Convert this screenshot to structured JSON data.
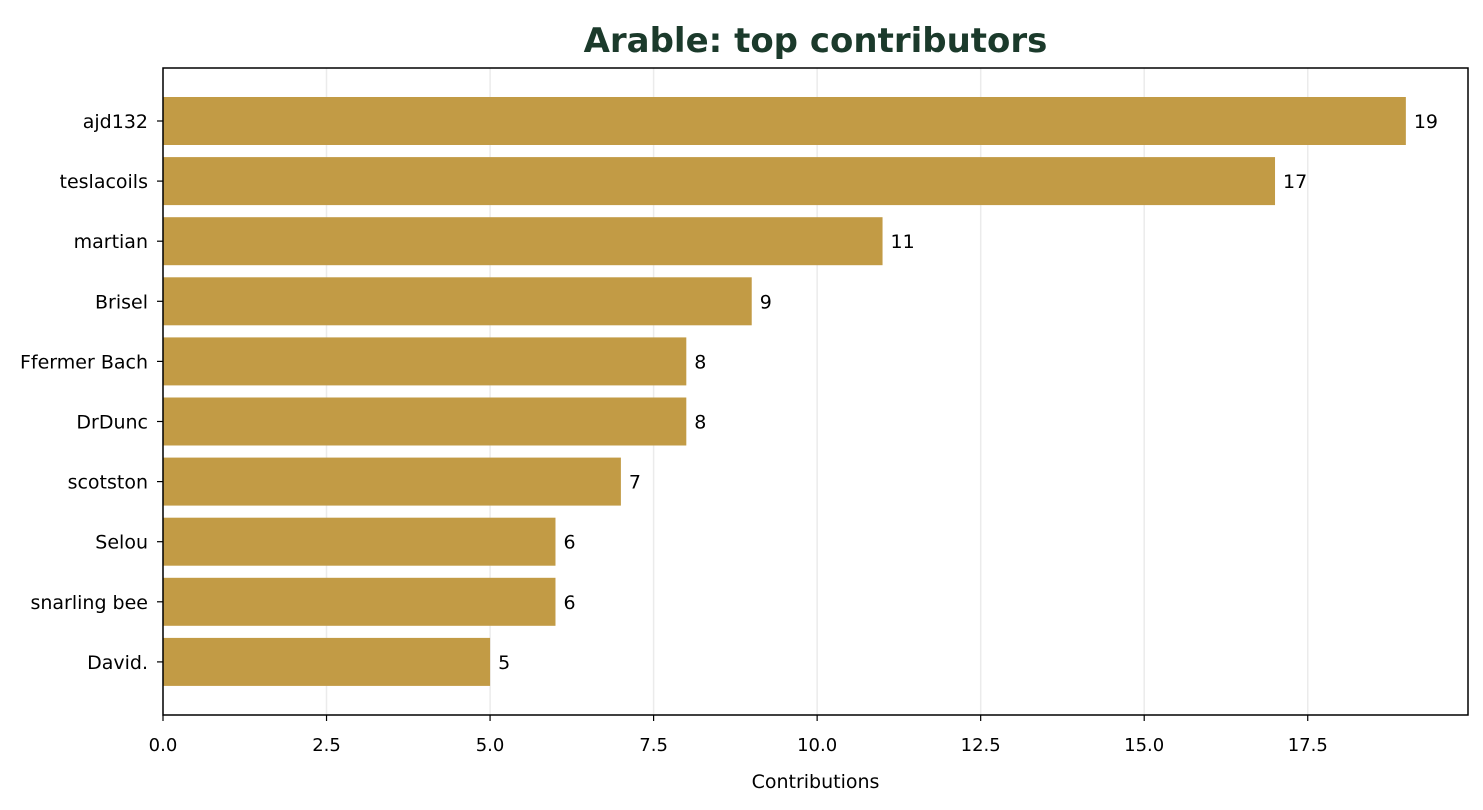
{
  "chart_data": {
    "type": "bar",
    "orientation": "horizontal",
    "title": "Arable: top contributors",
    "xlabel": "Contributions",
    "ylabel": "",
    "categories": [
      "ajd132",
      "teslacoils",
      "martian",
      "Brisel",
      "Ffermer Bach",
      "DrDunc",
      "scotston",
      "Selou",
      "snarling bee",
      "David."
    ],
    "values": [
      19,
      17,
      11,
      9,
      8,
      8,
      7,
      6,
      6,
      5
    ],
    "data_labels": [
      "19",
      "17",
      "11",
      "9",
      "8",
      "8",
      "7",
      "6",
      "6",
      "5"
    ],
    "xlim": [
      0,
      19.95
    ],
    "x_ticks": [
      0,
      2.5,
      5,
      7.5,
      10,
      12.5,
      15,
      17.5
    ],
    "x_tick_labels": [
      "0.0",
      "2.5",
      "5.0",
      "7.5",
      "10.0",
      "12.5",
      "15.0",
      "17.5"
    ],
    "grid": "vertical",
    "legend": "none",
    "colors": {
      "bar": "#c29b45",
      "title": "#1b3a2b",
      "grid": "#ebebeb",
      "axis": "#000000"
    }
  }
}
